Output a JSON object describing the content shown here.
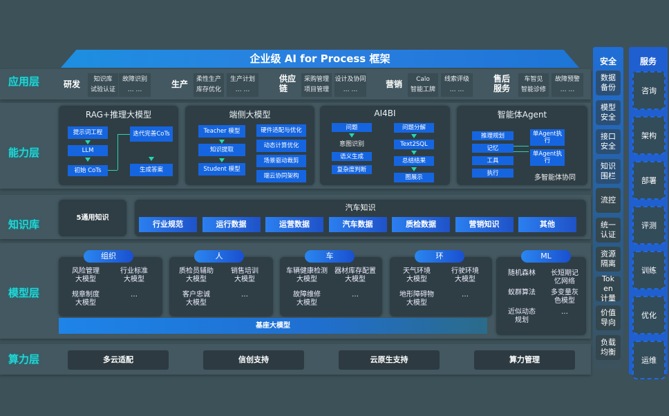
{
  "title": "企业级 AI for Process 框架",
  "layers": {
    "app": "应用层",
    "capability": "能力层",
    "knowledge": "知识库",
    "model": "模型层",
    "compute": "算力层"
  },
  "app_groups": [
    {
      "name": "研发",
      "items": [
        "知识库",
        "试验认证",
        "故障识别",
        "… …"
      ]
    },
    {
      "name": "生产",
      "items": [
        "柔性生产",
        "库存优化",
        "生产计划",
        "… …"
      ]
    },
    {
      "name": "供应链",
      "items": [
        "采购管理",
        "项目管理",
        "设计及协同",
        "… …"
      ]
    },
    {
      "name": "营销",
      "items": [
        "Calo",
        "智能工牌",
        "线索评级",
        "… …"
      ]
    },
    {
      "name": "售后服务",
      "items": [
        "车智见",
        "智能诊修",
        "故障预警",
        "… …"
      ]
    }
  ],
  "capability": {
    "rag": {
      "title": "RAG+推理大模型",
      "left": [
        "提示词工程",
        "LLM",
        "初始 CoTs"
      ],
      "right": [
        "迭代完善CoTs",
        "生成答案"
      ]
    },
    "edge": {
      "title": "端侧大模型",
      "left": [
        "Teacher 模型",
        "知识提取",
        "Student 模型"
      ],
      "right": [
        "硬件适配与优化",
        "动态计算优化",
        "场景驱动裁剪",
        "端云协同架构"
      ]
    },
    "ai4bi": {
      "title": "AI4BI",
      "left_top": "问题",
      "left_plain": "意图识别",
      "left": [
        "语义生成",
        "复杂度判断"
      ],
      "right": [
        "问题分解",
        "Text2SQL",
        "总结结果",
        "图展示"
      ]
    },
    "agent": {
      "title": "智能体Agent",
      "left": [
        "推理规划",
        "记忆",
        "工具",
        "执行"
      ],
      "right": [
        "单Agent执行",
        "单Agent执行"
      ],
      "footer": "多智能体协同"
    }
  },
  "knowledge": {
    "general": "5通用知识",
    "auto_title": "汽车知识",
    "chips": [
      "行业规范",
      "运行数据",
      "运营数据",
      "汽车数据",
      "质检数据",
      "营销知识",
      "其他"
    ]
  },
  "models": [
    {
      "tag": "组织",
      "items": [
        "风险管理大模型",
        "行业标准大模型",
        "规章制度大模型",
        "…"
      ]
    },
    {
      "tag": "人",
      "items": [
        "质检员辅助大模型",
        "销售培训大模型",
        "客户忠诚大模型",
        "…"
      ]
    },
    {
      "tag": "车",
      "items": [
        "车辆健康检测大模型",
        "器材库存配置大模型",
        "故障维修大模型",
        "…"
      ]
    },
    {
      "tag": "环",
      "items": [
        "天气环境大模型",
        "行驶环境大模型",
        "地形障碍物大模型",
        "…"
      ]
    },
    {
      "tag": "ML",
      "items": [
        "随机森林",
        "长短期记忆网络",
        "蚁群算法",
        "多变量灰色模型",
        "近似动态规划",
        "…"
      ]
    }
  ],
  "base_model": "基座大模型",
  "compute": [
    "多云适配",
    "信创支持",
    "云原生支持",
    "算力管理"
  ],
  "security": {
    "title": "安全",
    "items": [
      "数据备份",
      "模型安全",
      "接口安全",
      "知识围栏",
      "流控",
      "统一认证",
      "资源隔离",
      "Token计量",
      "价值导向",
      "负载均衡"
    ]
  },
  "services": {
    "title": "服务",
    "items": [
      "咨询",
      "架构",
      "部署",
      "评测",
      "训练",
      "优化",
      "运维"
    ]
  }
}
